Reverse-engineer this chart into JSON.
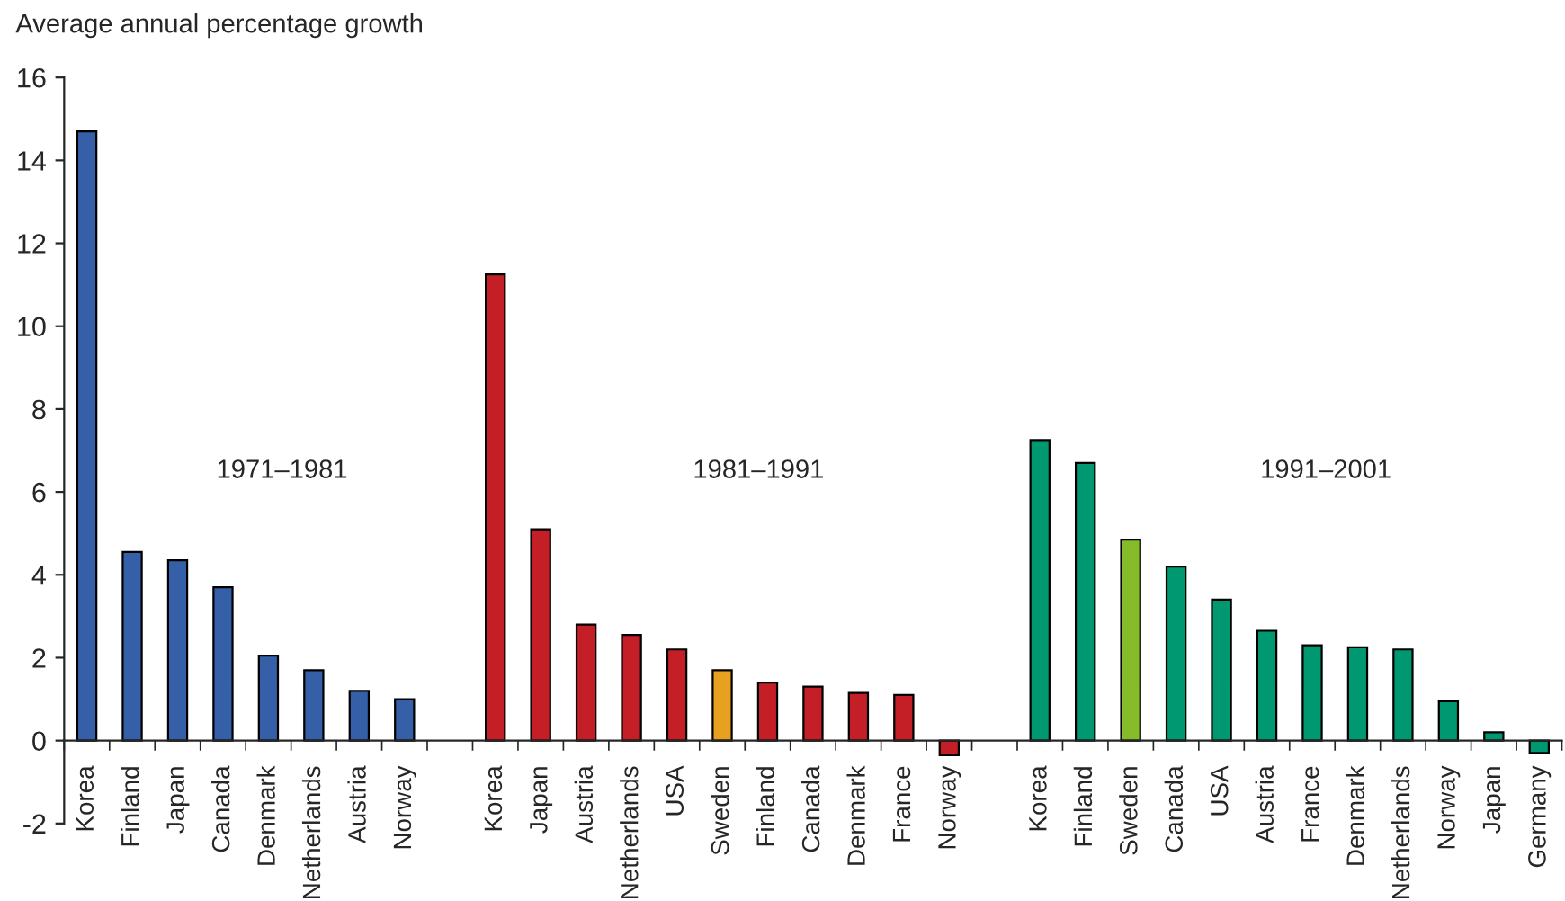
{
  "chart_data": {
    "type": "bar",
    "ylabel": "Average annual percentage growth",
    "categories": [
      "Korea",
      "Finland",
      "Japan",
      "Canada",
      "Denmark",
      "Netherlands",
      "Austria",
      "Norway",
      null,
      "Korea",
      "Japan",
      "Austria",
      "Netherlands",
      "USA",
      "Sweden",
      "Finland",
      "Canada",
      "Denmark",
      "France",
      "Norway",
      null,
      "Korea",
      "Finland",
      "Sweden",
      "Canada",
      "USA",
      "Austria",
      "France",
      "Denmark",
      "Netherlands",
      "Norway",
      "Japan",
      "Germany"
    ],
    "values": [
      14.7,
      4.55,
      4.35,
      3.7,
      2.05,
      1.7,
      1.2,
      1.0,
      null,
      11.25,
      5.1,
      2.8,
      2.55,
      2.2,
      1.7,
      1.4,
      1.3,
      1.15,
      1.1,
      -0.35,
      null,
      7.25,
      6.7,
      4.85,
      4.2,
      3.4,
      2.65,
      2.3,
      2.25,
      2.2,
      0.95,
      0.2,
      -0.3
    ],
    "colors": [
      "#3560a8",
      "#3560a8",
      "#3560a8",
      "#3560a8",
      "#3560a8",
      "#3560a8",
      "#3560a8",
      "#3560a8",
      null,
      "#c41e26",
      "#c41e26",
      "#c41e26",
      "#c41e26",
      "#c41e26",
      "#e8a020",
      "#c41e26",
      "#c41e26",
      "#c41e26",
      "#c41e26",
      "#c41e26",
      null,
      "#009870",
      "#009870",
      "#86bc2a",
      "#009870",
      "#009870",
      "#009870",
      "#009870",
      "#009870",
      "#009870",
      "#009870",
      "#009870",
      "#009870"
    ],
    "annotations": [
      "1971–1981",
      "1981–1991",
      "1991–2001"
    ],
    "ylim": [
      -2,
      16
    ],
    "yticks": [
      -2,
      0,
      2,
      4,
      6,
      8,
      10,
      12,
      14,
      16
    ],
    "grid": false,
    "legend": false
  }
}
